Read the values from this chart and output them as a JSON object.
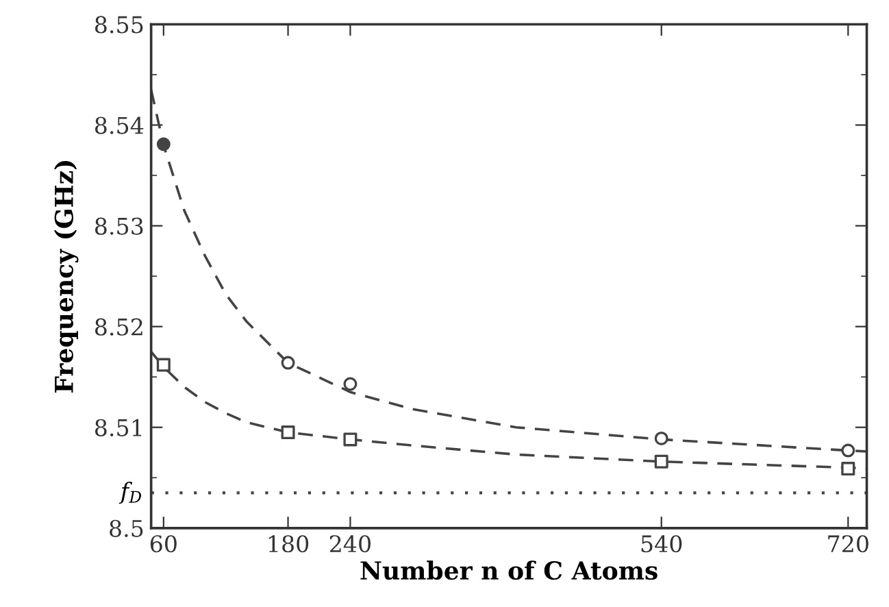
{
  "chart_data": {
    "type": "scatter",
    "xlabel": "Number n of C Atoms",
    "ylabel": "Frequency (GHz)",
    "x": [
      60,
      180,
      240,
      540,
      720
    ],
    "series": [
      {
        "type": "line",
        "color": "#444444",
        "line_style": "dashed",
        "marker": "none",
        "x": [
          48,
          60,
          80,
          100,
          120,
          140,
          180,
          240,
          300,
          400,
          540,
          720,
          738
        ],
        "values": [
          8.5435,
          8.538,
          8.5315,
          8.527,
          8.5232,
          8.5205,
          8.5164,
          8.5135,
          8.5118,
          8.51,
          8.5088,
          8.5077,
          8.5076
        ]
      },
      {
        "type": "line",
        "color": "#444444",
        "line_style": "dashed",
        "marker": "none",
        "x": [
          48,
          60,
          80,
          100,
          120,
          140,
          180,
          240,
          300,
          400,
          540,
          720,
          738
        ],
        "values": [
          8.5175,
          8.516,
          8.514,
          8.5125,
          8.5114,
          8.5105,
          8.5095,
          8.5088,
          8.5082,
          8.5073,
          8.5066,
          8.506,
          8.5059
        ]
      },
      {
        "color": "#444444",
        "marker": "circle",
        "colors": [
          "#444444",
          "#ffffff",
          "#ffffff",
          "#ffffff",
          "#ffffff"
        ],
        "values": [
          8.5381,
          8.5164,
          8.5143,
          8.5089,
          8.5077
        ]
      },
      {
        "color": "#444444",
        "marker": "square",
        "colors": [
          "#ffffff",
          "#ffffff",
          "#ffffff",
          "#ffffff",
          "#ffffff"
        ],
        "values": [
          8.5162,
          8.5095,
          8.5088,
          8.5066,
          8.5059
        ]
      }
    ],
    "ref_lines": [
      {
        "axis": "y",
        "value": 8.5035,
        "label": "f$_{D}$",
        "color": "#444444",
        "line_style": "dotted"
      }
    ],
    "xlim": [
      48,
      738
    ],
    "xticks": [
      60,
      180,
      240,
      540,
      720
    ],
    "ylim": [
      8.5,
      8.55
    ],
    "yticks": [
      {
        "value": 8.5,
        "label": "8.5"
      },
      8.51,
      8.52,
      8.53,
      8.54,
      8.55
    ],
    "grid": false,
    "legend": false
  }
}
